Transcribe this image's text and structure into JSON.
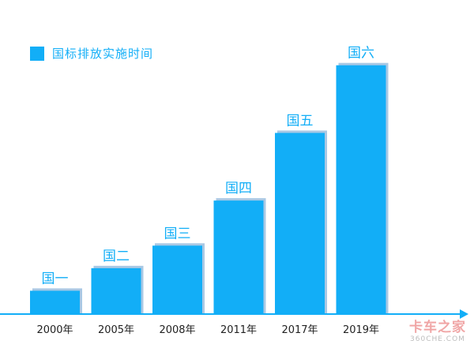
{
  "chart_data": {
    "type": "bar",
    "categories": [
      "2000年",
      "2005年",
      "2008年",
      "2011年",
      "2017年",
      "2019年"
    ],
    "bar_labels": [
      "国一",
      "国二",
      "国三",
      "国四",
      "国五",
      "国六"
    ],
    "values": [
      1,
      2,
      3,
      5,
      8,
      11
    ],
    "legend": {
      "label": "国标排放实施时间",
      "position": "top-left"
    },
    "ylim": [
      0,
      11.9
    ],
    "grid": false
  },
  "colors": {
    "bar": "#12aef7",
    "bar_shadow": "#a9c8e4",
    "axis": "#12aef7",
    "tick_text": "#222222",
    "bar_label": "#12aef7"
  },
  "watermark": {
    "text": "卡车之家",
    "sub": "360CHE.COM"
  }
}
